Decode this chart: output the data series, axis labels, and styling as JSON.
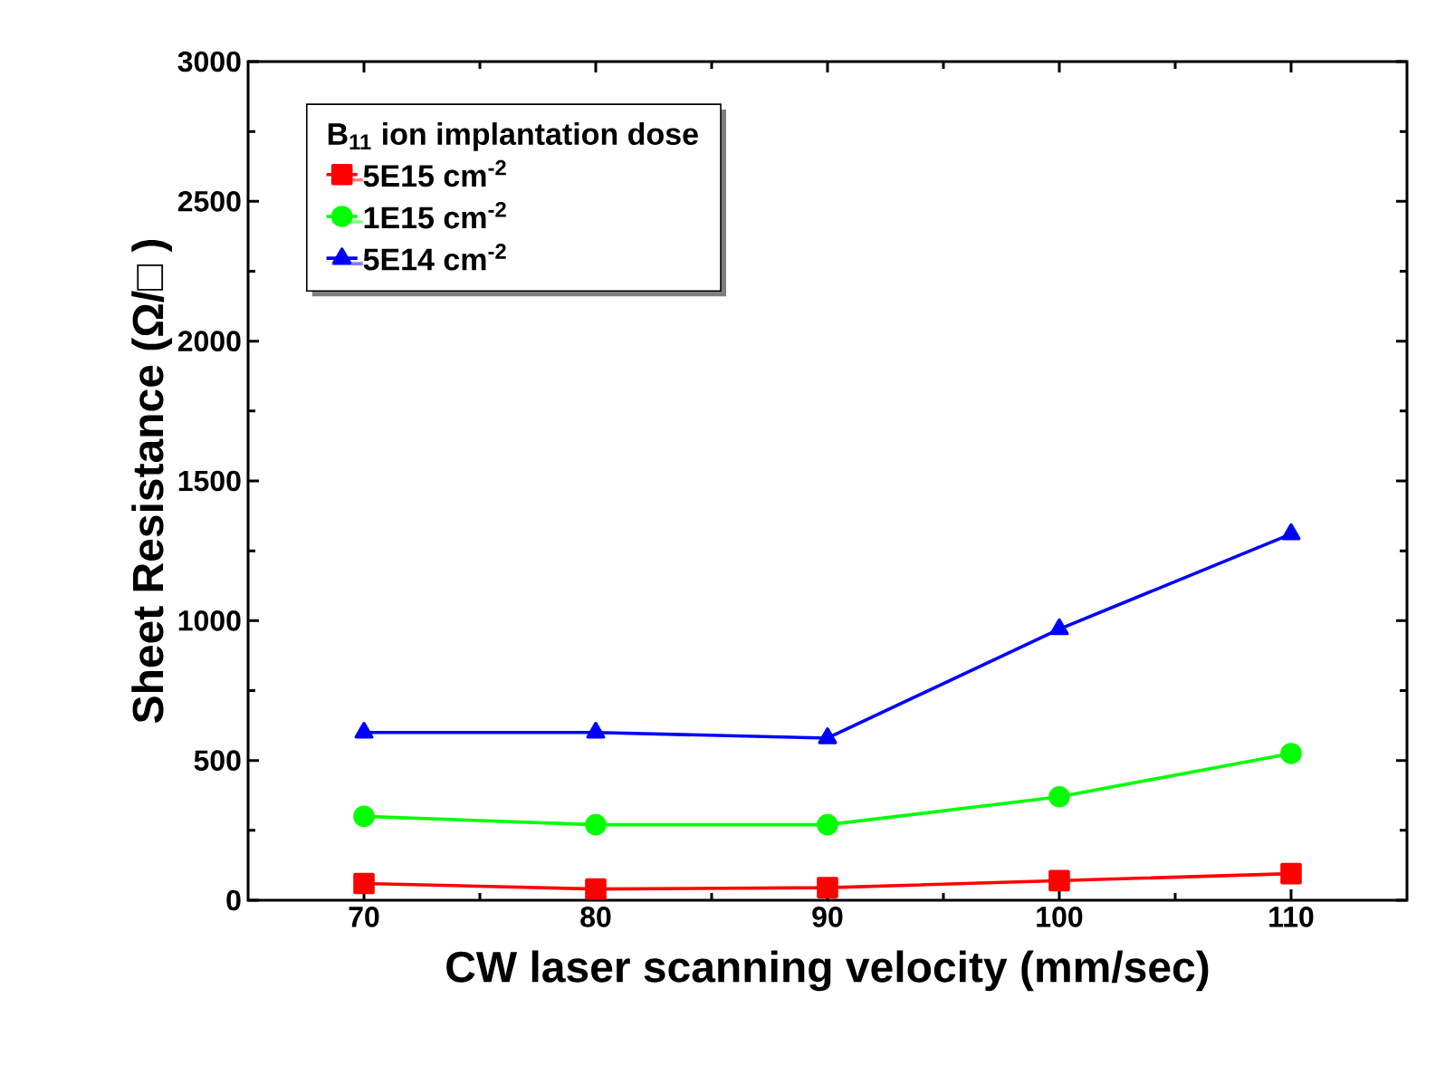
{
  "chart_data": {
    "type": "line",
    "xlabel": "CW laser scanning velocity (mm/sec)",
    "ylabel": "Sheet Resistance (Ω/□ )",
    "legend_title": "B$_{11}$ ion implantation dose",
    "x": [
      70,
      80,
      90,
      100,
      110
    ],
    "series": [
      {
        "name": "5E15 cm$^{-2}$",
        "color": "#ff0000",
        "marker": "square",
        "values": [
          60,
          40,
          45,
          70,
          95
        ]
      },
      {
        "name": "1E15 cm$^{-2}$",
        "color": "#00ff00",
        "marker": "circle",
        "values": [
          300,
          270,
          270,
          370,
          525
        ]
      },
      {
        "name": "5E14 cm$^{-2}$",
        "color": "#0000ff",
        "marker": "triangle",
        "values": [
          600,
          600,
          580,
          970,
          1310
        ]
      }
    ],
    "xlim": [
      65,
      115
    ],
    "xticks": [
      70,
      80,
      90,
      100,
      110
    ],
    "ylim": [
      0,
      3000
    ],
    "yticks": [
      0,
      500,
      1000,
      1500,
      2000,
      2500,
      3000
    ],
    "legend": "top left",
    "grid": false,
    "line_style": "solid"
  }
}
